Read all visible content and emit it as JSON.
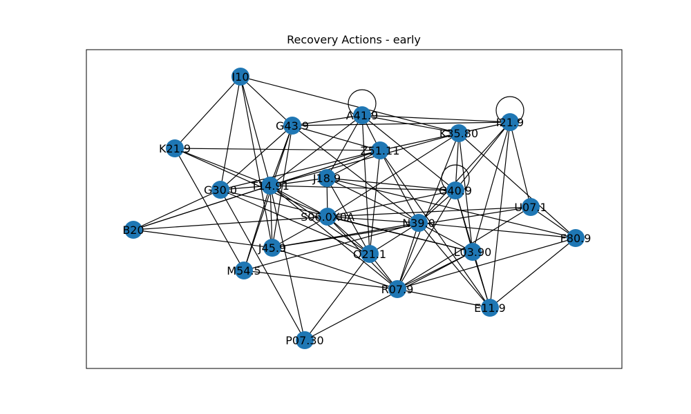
{
  "figure": {
    "title": "Recovery Actions - early",
    "node_color": "#1f77b4",
    "edge_color": "#000000"
  },
  "graph": {
    "nodes": [
      {
        "id": "I10",
        "label": "I10"
      },
      {
        "id": "G43.9",
        "label": "G43.9"
      },
      {
        "id": "A41.9",
        "label": "A41.9"
      },
      {
        "id": "I21.9",
        "label": "I21.9"
      },
      {
        "id": "K35.80",
        "label": "K35.80"
      },
      {
        "id": "K21.9",
        "label": "K21.9"
      },
      {
        "id": "Z51.11",
        "label": "Z51.11"
      },
      {
        "id": "G30.0",
        "label": "G30.0"
      },
      {
        "id": "T14.91",
        "label": "T14.91"
      },
      {
        "id": "J18.9",
        "label": "J18.9"
      },
      {
        "id": "G40.9",
        "label": "G40.9"
      },
      {
        "id": "U07.1",
        "label": "U07.1"
      },
      {
        "id": "B20",
        "label": "B20"
      },
      {
        "id": "S06.0X0A",
        "label": "S06.0X0A"
      },
      {
        "id": "N39.0",
        "label": "N39.0"
      },
      {
        "id": "F80.9",
        "label": "F80.9"
      },
      {
        "id": "J45.9",
        "label": "J45.9"
      },
      {
        "id": "Q21.1",
        "label": "Q21.1"
      },
      {
        "id": "L03.90",
        "label": "L03.90"
      },
      {
        "id": "M54.5",
        "label": "M54.5"
      },
      {
        "id": "R07.9",
        "label": "R07.9"
      },
      {
        "id": "E11.9",
        "label": "E11.9"
      },
      {
        "id": "P07.30",
        "label": "P07.30"
      }
    ],
    "edges": [
      [
        "I10",
        "G43.9"
      ],
      [
        "I10",
        "K21.9"
      ],
      [
        "I10",
        "G30.0"
      ],
      [
        "I10",
        "T14.91"
      ],
      [
        "I10",
        "K35.80"
      ],
      [
        "I10",
        "J45.9"
      ],
      [
        "G43.9",
        "A41.9"
      ],
      [
        "G43.9",
        "I21.9"
      ],
      [
        "G43.9",
        "T14.91"
      ],
      [
        "G43.9",
        "J45.9"
      ],
      [
        "G43.9",
        "Z51.11"
      ],
      [
        "G43.9",
        "N39.0"
      ],
      [
        "G43.9",
        "G30.0"
      ],
      [
        "G43.9",
        "M54.5"
      ],
      [
        "A41.9",
        "A41.9"
      ],
      [
        "A41.9",
        "I21.9"
      ],
      [
        "A41.9",
        "K35.80"
      ],
      [
        "A41.9",
        "T14.91"
      ],
      [
        "A41.9",
        "J18.9"
      ],
      [
        "A41.9",
        "Q21.1"
      ],
      [
        "A41.9",
        "G40.9"
      ],
      [
        "A41.9",
        "Z51.11"
      ],
      [
        "I21.9",
        "I21.9"
      ],
      [
        "I21.9",
        "K35.80"
      ],
      [
        "I21.9",
        "G40.9"
      ],
      [
        "I21.9",
        "U07.1"
      ],
      [
        "I21.9",
        "E11.9"
      ],
      [
        "I21.9",
        "N39.0"
      ],
      [
        "I21.9",
        "L03.90"
      ],
      [
        "K35.80",
        "Z51.11"
      ],
      [
        "K35.80",
        "G40.9"
      ],
      [
        "K35.80",
        "F80.9"
      ],
      [
        "K35.80",
        "S06.0X0A"
      ],
      [
        "K35.80",
        "L03.90"
      ],
      [
        "K35.80",
        "T14.91"
      ],
      [
        "K35.80",
        "R07.9"
      ],
      [
        "K21.9",
        "Z51.11"
      ],
      [
        "K21.9",
        "T14.91"
      ],
      [
        "K21.9",
        "S06.0X0A"
      ],
      [
        "K21.9",
        "M54.5"
      ],
      [
        "Z51.11",
        "T14.91"
      ],
      [
        "Z51.11",
        "G30.0"
      ],
      [
        "Z51.11",
        "Q21.1"
      ],
      [
        "Z51.11",
        "E11.9"
      ],
      [
        "Z51.11",
        "J18.9"
      ],
      [
        "Z51.11",
        "B20"
      ],
      [
        "Z51.11",
        "N39.0"
      ],
      [
        "G30.0",
        "T14.91"
      ],
      [
        "G30.0",
        "Q21.1"
      ],
      [
        "G30.0",
        "P07.30"
      ],
      [
        "G30.0",
        "L03.90"
      ],
      [
        "T14.91",
        "J18.9"
      ],
      [
        "T14.91",
        "S06.0X0A"
      ],
      [
        "T14.91",
        "B20"
      ],
      [
        "T14.91",
        "J45.9"
      ],
      [
        "T14.91",
        "M54.5"
      ],
      [
        "T14.91",
        "R07.9"
      ],
      [
        "T14.91",
        "Q21.1"
      ],
      [
        "T14.91",
        "P07.30"
      ],
      [
        "T14.91",
        "G40.9"
      ],
      [
        "J18.9",
        "G40.9"
      ],
      [
        "J18.9",
        "S06.0X0A"
      ],
      [
        "J18.9",
        "N39.0"
      ],
      [
        "J18.9",
        "Q21.1"
      ],
      [
        "J18.9",
        "F80.9"
      ],
      [
        "G40.9",
        "G40.9"
      ],
      [
        "G40.9",
        "N39.0"
      ],
      [
        "G40.9",
        "L03.90"
      ],
      [
        "G40.9",
        "R07.9"
      ],
      [
        "G40.9",
        "E11.9"
      ],
      [
        "G40.9",
        "S06.0X0A"
      ],
      [
        "U07.1",
        "F80.9"
      ],
      [
        "U07.1",
        "S06.0X0A"
      ],
      [
        "U07.1",
        "R07.9"
      ],
      [
        "U07.1",
        "J45.9"
      ],
      [
        "B20",
        "S06.0X0A"
      ],
      [
        "B20",
        "J45.9"
      ],
      [
        "B20",
        "G30.0"
      ],
      [
        "S06.0X0A",
        "N39.0"
      ],
      [
        "S06.0X0A",
        "Q21.1"
      ],
      [
        "S06.0X0A",
        "R07.9"
      ],
      [
        "S06.0X0A",
        "J45.9"
      ],
      [
        "S06.0X0A",
        "L03.90"
      ],
      [
        "N39.0",
        "F80.9"
      ],
      [
        "N39.0",
        "Q21.1"
      ],
      [
        "N39.0",
        "L03.90"
      ],
      [
        "N39.0",
        "R07.9"
      ],
      [
        "N39.0",
        "J45.9"
      ],
      [
        "N39.0",
        "M54.5"
      ],
      [
        "N39.0",
        "E11.9"
      ],
      [
        "F80.9",
        "R07.9"
      ],
      [
        "F80.9",
        "E11.9"
      ],
      [
        "J45.9",
        "R07.9"
      ],
      [
        "Q21.1",
        "P07.30"
      ],
      [
        "Q21.1",
        "R07.9"
      ],
      [
        "L03.90",
        "R07.9"
      ],
      [
        "L03.90",
        "E11.9"
      ],
      [
        "L03.90",
        "P07.30"
      ],
      [
        "M54.5",
        "R07.9"
      ],
      [
        "R07.9",
        "E11.9"
      ]
    ]
  }
}
